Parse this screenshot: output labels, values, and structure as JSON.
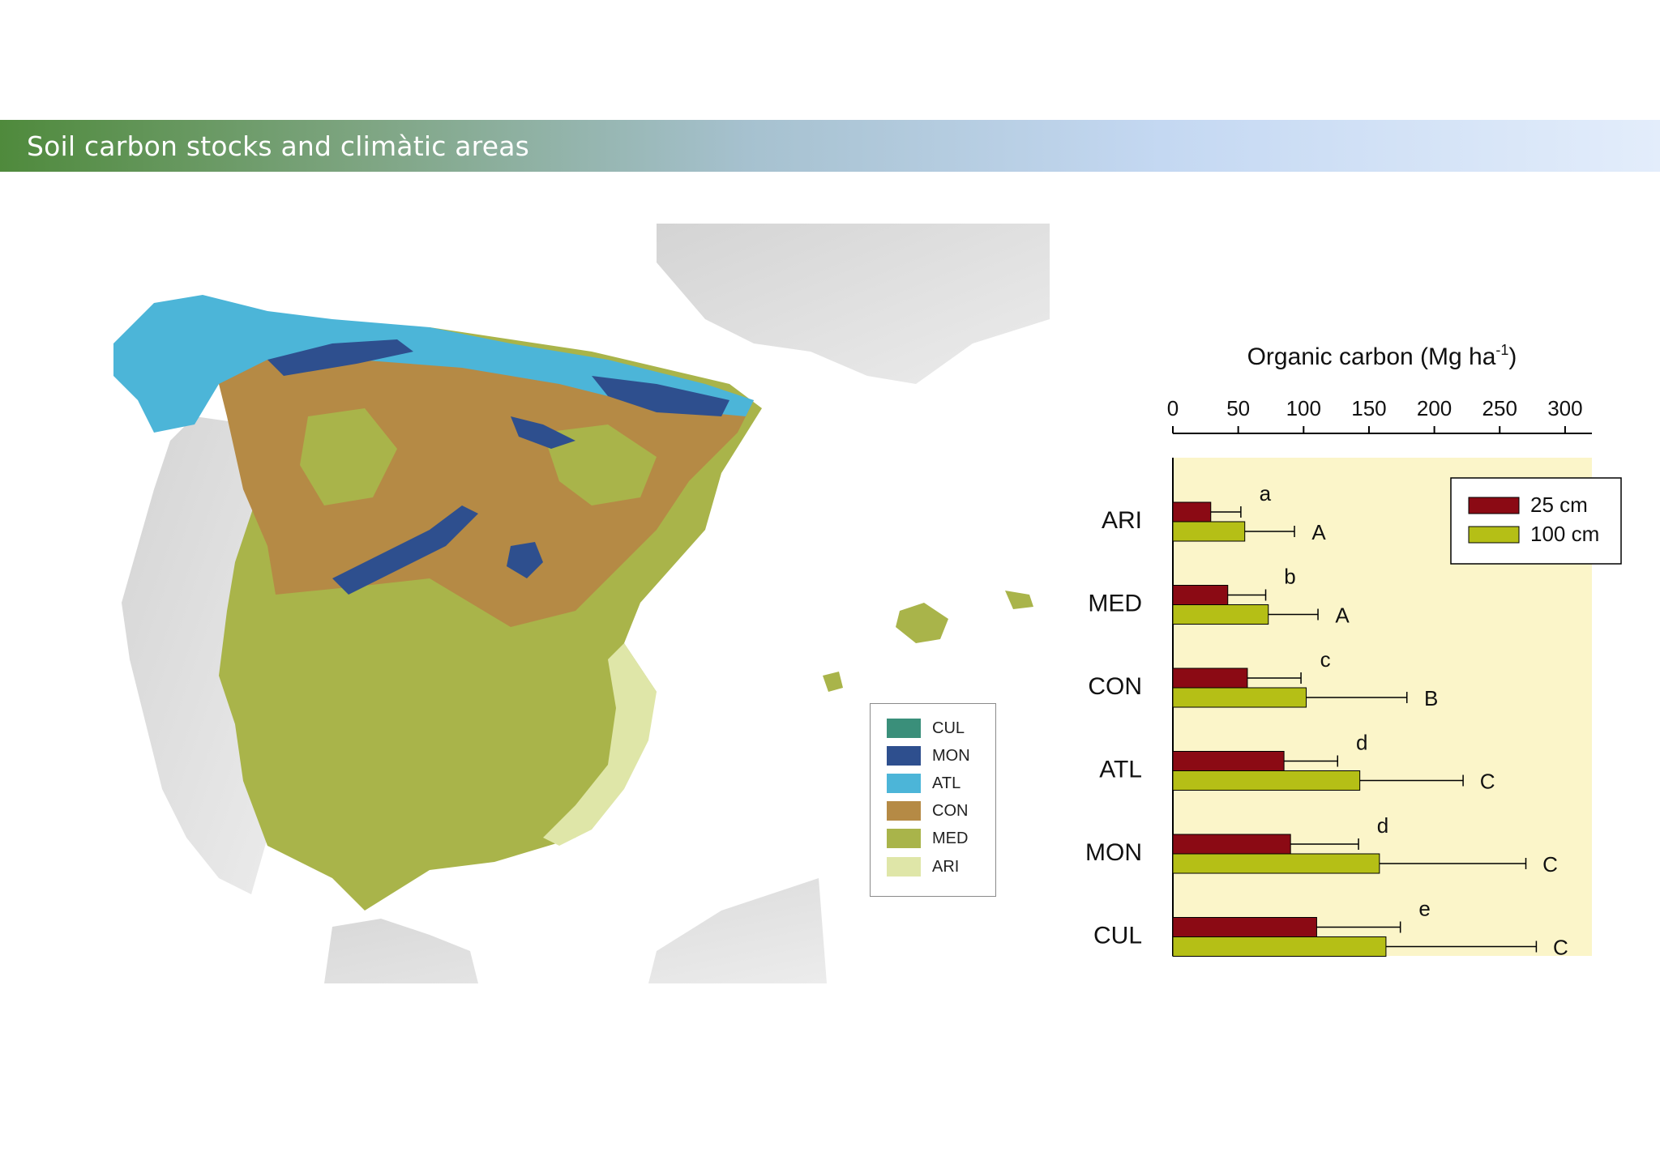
{
  "header": {
    "title": "Soil carbon stocks and climàtic areas"
  },
  "map_legend": {
    "items": [
      {
        "label": "CUL",
        "color": "#3a8f7a"
      },
      {
        "label": "MON",
        "color": "#2e4f8e"
      },
      {
        "label": "ATL",
        "color": "#4cb5d8"
      },
      {
        "label": "CON",
        "color": "#b58a45"
      },
      {
        "label": "MED",
        "color": "#a9b44a"
      },
      {
        "label": "ARI",
        "color": "#dfe6a8"
      }
    ]
  },
  "chart_data": {
    "type": "bar",
    "orientation": "horizontal",
    "title": "Organic carbon (Mg ha",
    "title_superscript": "-1",
    "title_suffix": ")",
    "xlim": [
      0,
      320
    ],
    "xticks": [
      0,
      50,
      100,
      150,
      200,
      250,
      300
    ],
    "categories": [
      "ARI",
      "MED",
      "CON",
      "ATL",
      "MON",
      "CUL"
    ],
    "series": [
      {
        "name": "25 cm",
        "color": "#8b0a14",
        "values": [
          29,
          42,
          57,
          85,
          90,
          110
        ],
        "errors": [
          23,
          29,
          41,
          41,
          52,
          64
        ],
        "letters": [
          "a",
          "b",
          "c",
          "d",
          "d",
          "e"
        ]
      },
      {
        "name": "100 cm",
        "color": "#b5bf16",
        "values": [
          55,
          73,
          102,
          143,
          158,
          163
        ],
        "errors": [
          38,
          38,
          77,
          79,
          112,
          115
        ],
        "letters": [
          "A",
          "A",
          "B",
          "C",
          "C",
          "C"
        ]
      }
    ],
    "legend_position": "top-right",
    "plot_background": "#fbf5c9",
    "grid": false
  }
}
